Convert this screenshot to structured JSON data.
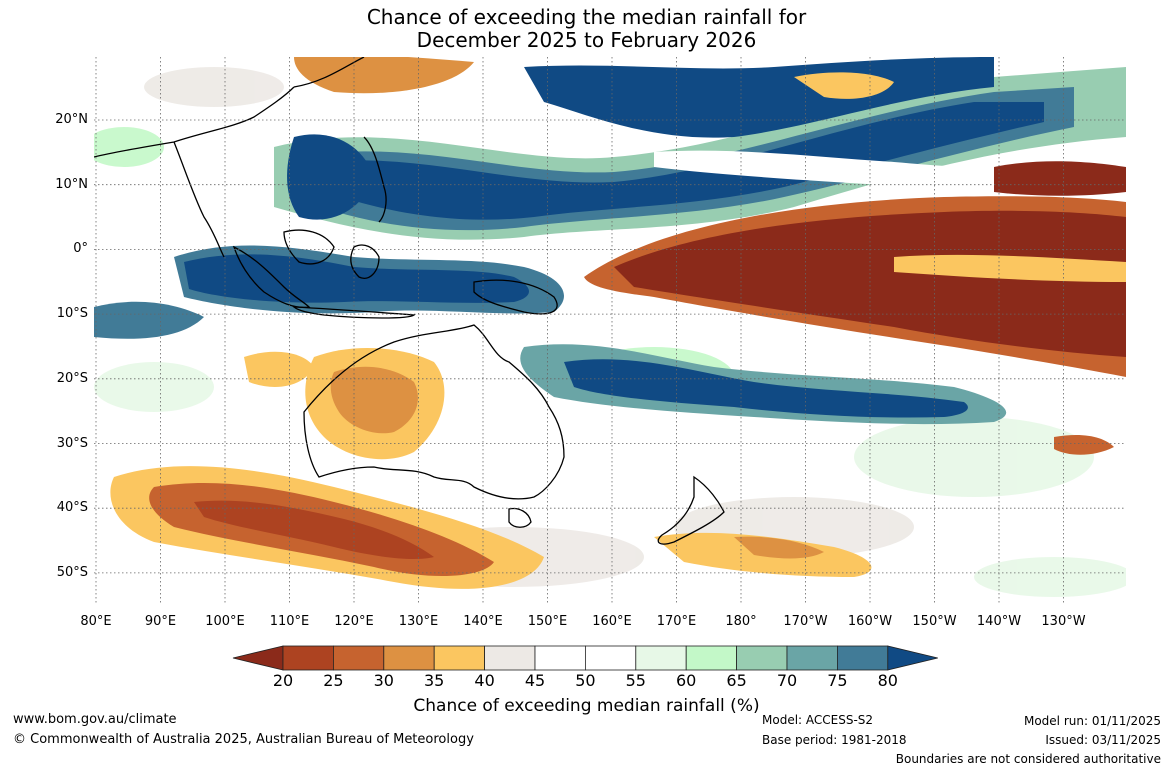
{
  "title_line1": "Chance of exceeding the median rainfall for",
  "title_line2": "December 2025 to February 2026",
  "lat_labels": [
    "20°N",
    "10°N",
    "0°",
    "10°S",
    "20°S",
    "30°S",
    "40°S",
    "50°S"
  ],
  "lon_labels": [
    "80°E",
    "90°E",
    "100°E",
    "110°E",
    "120°E",
    "130°E",
    "140°E",
    "150°E",
    "160°E",
    "170°E",
    "180°",
    "170°W",
    "160°W",
    "150°W",
    "140°W",
    "130°W"
  ],
  "colorbar": {
    "label": "Chance of exceeding median rainfall (%)",
    "ticks": [
      "20",
      "25",
      "30",
      "35",
      "40",
      "45",
      "50",
      "55",
      "60",
      "65",
      "70",
      "75",
      "80"
    ],
    "colors": [
      "#8b2a1a",
      "#ad4321",
      "#c6632f",
      "#dd9142",
      "#fbc660",
      "#ede9e5",
      "#ffffff",
      "#ffffff",
      "#e7f8e7",
      "#c3f8c8",
      "#98cdb1",
      "#6aa5a6",
      "#417b97",
      "#104a84"
    ]
  },
  "footer": {
    "website": "www.bom.gov.au/climate",
    "copyright": "© Commonwealth of Australia 2025, Australian Bureau of Meteorology",
    "model": "Model: ACCESS-S2",
    "base_period": "Base period: 1981-2018",
    "model_run": "Model run: 01/11/2025",
    "issued": "Issued: 03/11/2025",
    "disclaimer": "Boundaries are not considered authoritative"
  }
}
